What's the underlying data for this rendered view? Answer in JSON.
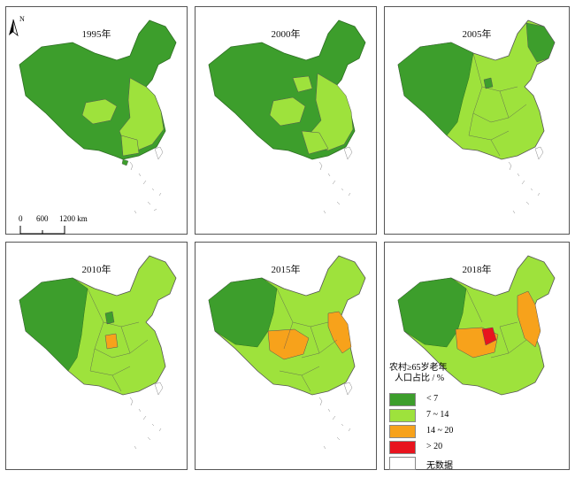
{
  "panels": [
    {
      "year_label": "1995年"
    },
    {
      "year_label": "2000年"
    },
    {
      "year_label": "2005年"
    },
    {
      "year_label": "2010年"
    },
    {
      "year_label": "2015年"
    },
    {
      "year_label": "2018年"
    }
  ],
  "north_arrow": {
    "label": "N"
  },
  "scale_bar": {
    "ticks": [
      "0",
      "600",
      "1200 km"
    ]
  },
  "legend": {
    "title_line1": "农村≥65岁老年",
    "title_line2": "人口占比 / %",
    "items": [
      {
        "label": "< 7",
        "color": "#3d9e2c"
      },
      {
        "label": "7 ~ 14",
        "color": "#9ee23c"
      },
      {
        "label": "14 ~ 20",
        "color": "#f7a21b"
      },
      {
        "label": "> 20",
        "color": "#e8141e"
      },
      {
        "label": "无数据",
        "color": "#ffffff"
      }
    ]
  },
  "colors": {
    "dark_green": "#3d9e2c",
    "light_green": "#9ee23c",
    "orange": "#f7a21b",
    "red": "#e8141e",
    "border": "#555555"
  }
}
